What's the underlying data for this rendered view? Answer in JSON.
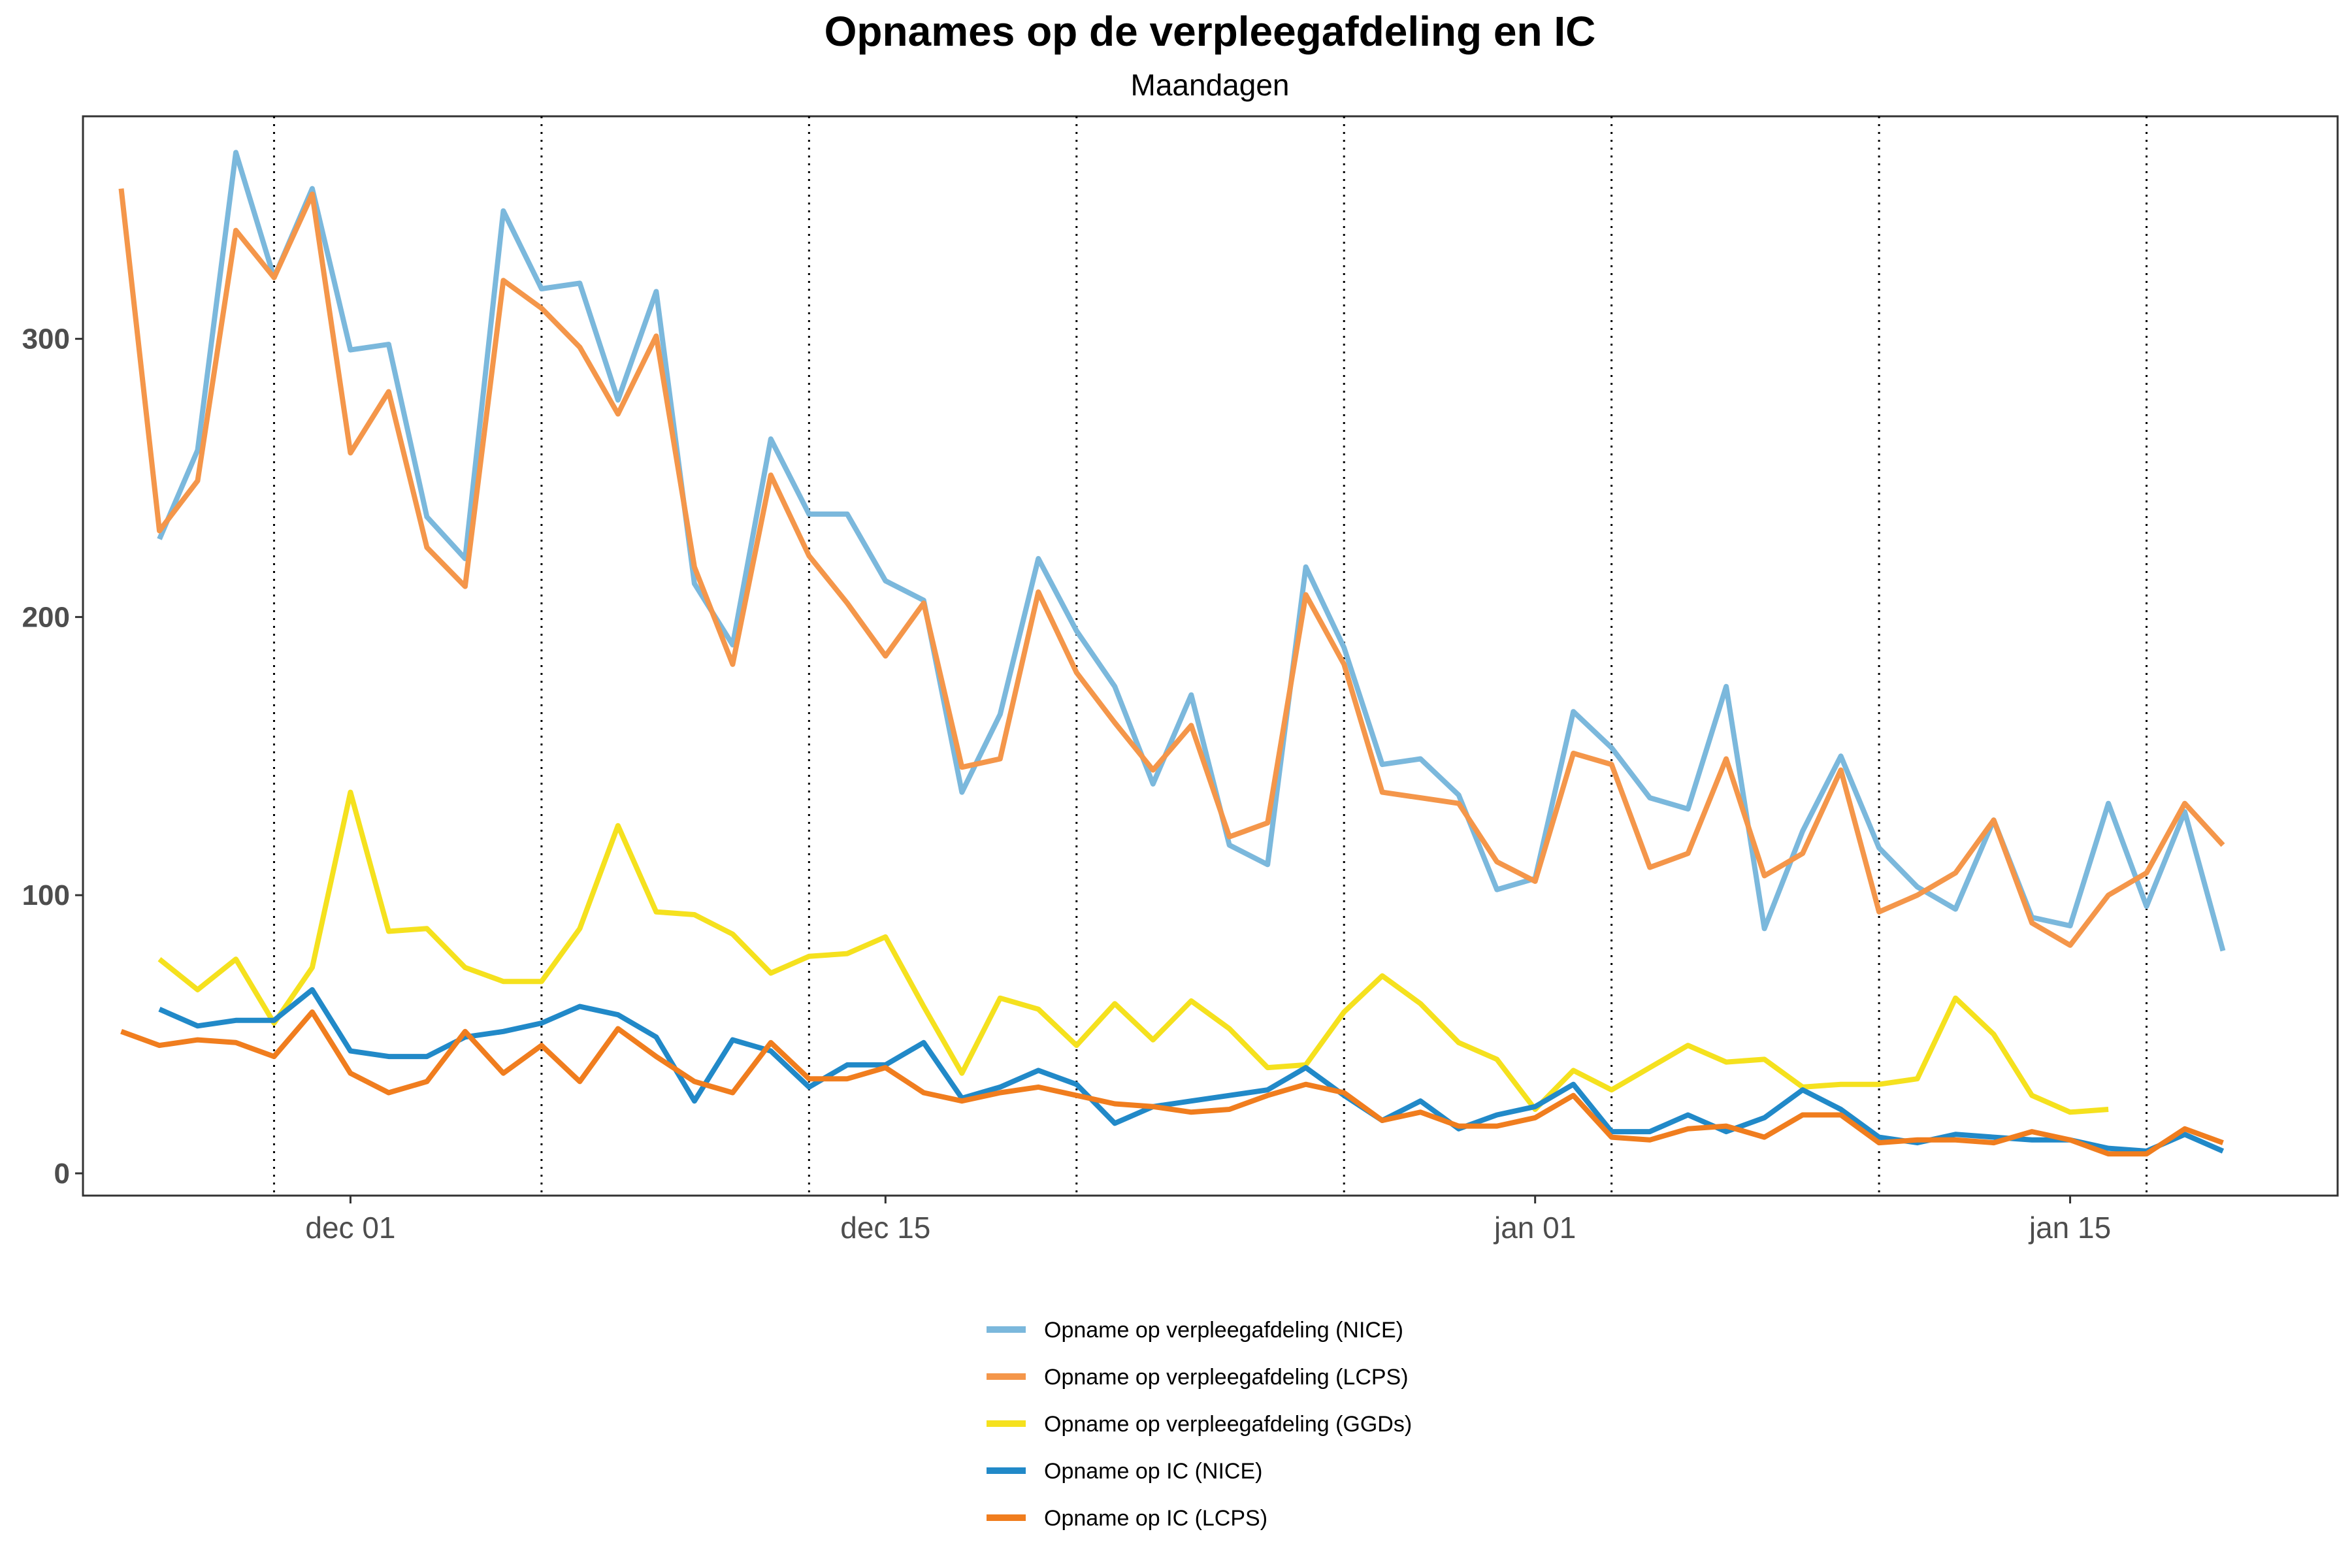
{
  "chart_data": {
    "type": "line",
    "title": "Opnames op de verpleegafdeling en IC",
    "subtitle": "Maandagen",
    "xlabel": "",
    "ylabel": "",
    "x_start": "2020-11-25",
    "x_end": "2021-01-19",
    "xlim": [
      "2020-11-24",
      "2021-01-22"
    ],
    "ylim": [
      -8,
      380
    ],
    "yticks": [
      0,
      100,
      200,
      300
    ],
    "yticks_labels": [
      "0",
      "100",
      "200",
      "300"
    ],
    "xticks": [
      "2020-12-01",
      "2020-12-15",
      "2021-01-01",
      "2021-01-15"
    ],
    "xticks_labels": [
      "dec 01",
      "dec 15",
      "jan 01",
      "jan 15"
    ],
    "vlines_mondays": [
      "2020-11-29",
      "2020-12-06",
      "2020-12-13",
      "2020-12-20",
      "2020-12-27",
      "2021-01-03",
      "2021-01-10",
      "2021-01-17"
    ],
    "grid": false,
    "legend_position": "bottom",
    "series": [
      {
        "name": "Opname op verpleegafdeling (NICE)",
        "color": "#7BB8DC",
        "values": [
          null,
          228,
          260,
          367,
          322,
          354,
          296,
          298,
          236,
          221,
          346,
          318,
          320,
          278,
          317,
          212,
          190,
          264,
          237,
          237,
          213,
          206,
          137,
          165,
          221,
          195,
          175,
          140,
          172,
          118,
          111,
          218,
          189,
          147,
          149,
          136,
          102,
          106,
          166,
          153,
          135,
          131,
          175,
          88,
          123,
          150,
          117,
          103,
          95,
          127,
          92,
          89,
          133,
          96,
          130,
          80
        ]
      },
      {
        "name": "Opname op verpleegafdeling (LCPS)",
        "color": "#F4964A",
        "values": [
          354,
          231,
          249,
          339,
          322,
          352,
          259,
          281,
          225,
          211,
          321,
          311,
          297,
          273,
          301,
          218,
          183,
          251,
          222,
          205,
          186,
          205,
          146,
          149,
          209,
          180,
          162,
          145,
          161,
          121,
          126,
          208,
          183,
          137,
          135,
          133,
          112,
          105,
          151,
          147,
          110,
          115,
          149,
          107,
          115,
          145,
          94,
          100,
          108,
          127,
          90,
          82,
          100,
          108,
          133,
          118
        ]
      },
      {
        "name": "Opname op verpleegafdeling (GGDs)",
        "color": "#F5E11E",
        "values": [
          null,
          77,
          66,
          77,
          54,
          74,
          137,
          87,
          88,
          74,
          69,
          69,
          88,
          125,
          94,
          93,
          86,
          72,
          78,
          79,
          85,
          60,
          36,
          63,
          59,
          46,
          61,
          48,
          62,
          52,
          38,
          39,
          58,
          71,
          61,
          47,
          41,
          23,
          37,
          30,
          38,
          46,
          40,
          41,
          31,
          32,
          32,
          34,
          63,
          50,
          28,
          22,
          23,
          null,
          null,
          null
        ]
      },
      {
        "name": "Opname op IC (NICE)",
        "color": "#2189C8",
        "values": [
          null,
          59,
          53,
          55,
          55,
          66,
          44,
          42,
          42,
          49,
          51,
          54,
          60,
          57,
          49,
          26,
          48,
          44,
          31,
          39,
          39,
          47,
          27,
          31,
          37,
          32,
          18,
          24,
          26,
          28,
          30,
          38,
          28,
          19,
          26,
          16,
          21,
          24,
          32,
          15,
          15,
          21,
          15,
          20,
          30,
          23,
          13,
          11,
          14,
          13,
          12,
          12,
          9,
          8,
          14,
          8
        ]
      },
      {
        "name": "Opname op IC (LCPS)",
        "color": "#F07D1E",
        "values": [
          51,
          46,
          48,
          47,
          42,
          58,
          36,
          29,
          33,
          51,
          36,
          46,
          33,
          52,
          42,
          33,
          29,
          47,
          34,
          34,
          38,
          29,
          26,
          29,
          31,
          28,
          25,
          24,
          22,
          23,
          28,
          32,
          29,
          19,
          22,
          17,
          17,
          20,
          28,
          13,
          12,
          16,
          17,
          13,
          21,
          21,
          11,
          12,
          12,
          11,
          15,
          12,
          7,
          7,
          16,
          11
        ]
      }
    ]
  }
}
